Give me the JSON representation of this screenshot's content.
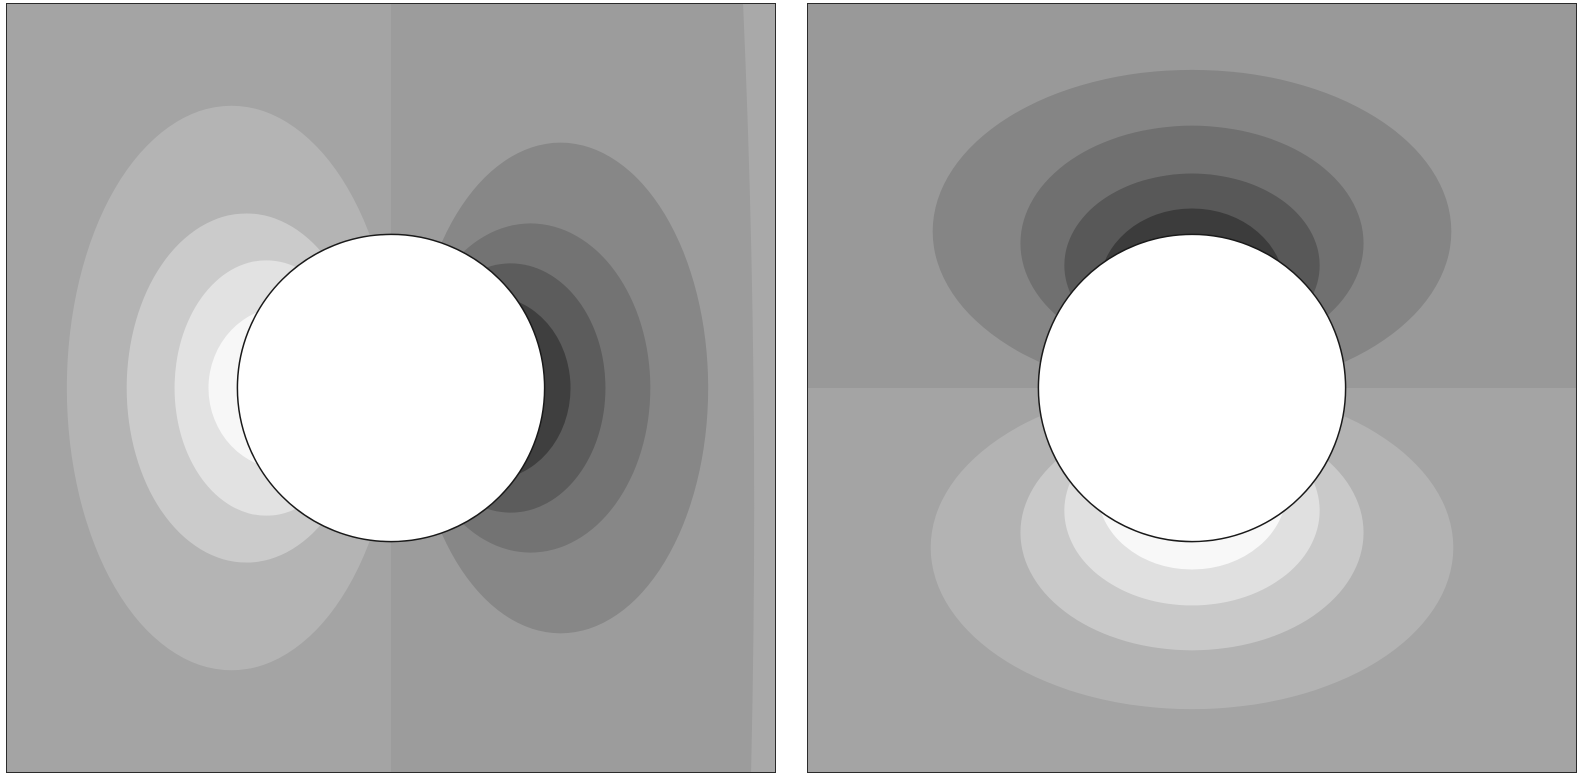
{
  "figure": {
    "panels": [
      {
        "id": "horizontal-dipole",
        "orientation": "horizontal",
        "background": "#9c9c9c",
        "obstacle_fill": "#ffffff",
        "light_side_colors": [
          "#b4b4b4",
          "#cbcbcb",
          "#e2e2e2",
          "#f7f7f7"
        ],
        "dark_side_colors": [
          "#878787",
          "#737373",
          "#5c5c5c",
          "#3f3f3f"
        ],
        "outer_band_light": "#a4a4a4",
        "outer_band_dark": "#a9a9a9"
      },
      {
        "id": "vertical-dipole",
        "orientation": "vertical",
        "background_top": "#999999",
        "background_bottom": "#a4a4a4",
        "obstacle_fill": "#ffffff",
        "light_side_colors": [
          "#b3b3b3",
          "#c9c9c9",
          "#e0e0e0",
          "#f8f8f8"
        ],
        "dark_side_colors": [
          "#858585",
          "#707070",
          "#585858",
          "#3c3c3c"
        ]
      }
    ]
  }
}
